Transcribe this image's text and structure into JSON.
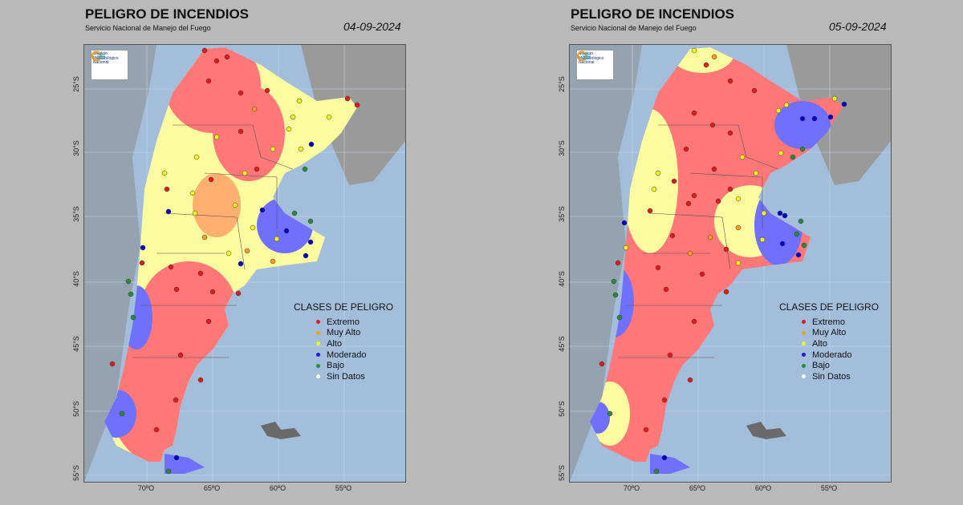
{
  "maps": [
    {
      "title": "PELIGRO DE INCENDIOS",
      "subtitle": "Servicio Nacional de Manejo del Fuego",
      "date": "04-09-2024"
    },
    {
      "title": "PELIGRO DE INCENDIOS",
      "subtitle": "Servicio Nacional de Manejo del Fuego",
      "date": "05-09-2024"
    }
  ],
  "logo_text": "Servicio Meteorológico Nacional",
  "lat_labels": [
    "25°S",
    "30°S",
    "35°S",
    "40°S",
    "45°S",
    "50°S",
    "55°S"
  ],
  "lon_labels": [
    "70ºO",
    "65ºO",
    "60ºO",
    "55ºO"
  ],
  "legend": {
    "title": "CLASES DE PELIGRO",
    "items": [
      {
        "label": "Extremo",
        "color": "#e31a1c"
      },
      {
        "label": "Muy Alto",
        "color": "#f59e1b"
      },
      {
        "label": "Alto",
        "color": "#f5f51a"
      },
      {
        "label": "Moderado",
        "color": "#1a1ae0"
      },
      {
        "label": "Bajo",
        "color": "#2a8a3a"
      },
      {
        "label": "Sin Datos",
        "color": "#ffffff"
      }
    ]
  },
  "colors": {
    "extremo": "#ff6b6b",
    "muy_alto": "#ffb066",
    "alto": "#fafa9a",
    "moderado": "#6b6bff",
    "bajo": "#8fd08f",
    "ocean": "#a3bedb",
    "land_neighbor": "#9a9a9a"
  }
}
